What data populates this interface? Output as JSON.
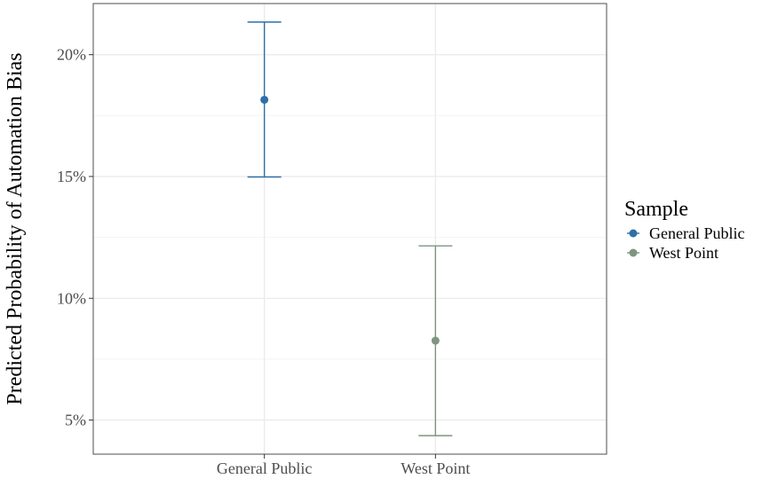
{
  "chart_data": {
    "type": "scatter",
    "title": "",
    "xlabel": "",
    "ylabel": "Predicted Probability of Automation Bias",
    "categories": [
      "General Public",
      "West Point"
    ],
    "ylim": [
      3.6,
      22.1
    ],
    "yticks": [
      5,
      10,
      15,
      20
    ],
    "ytick_labels": [
      "5%",
      "10%",
      "15%",
      "20%"
    ],
    "grid": true,
    "legend": {
      "title": "Sample",
      "position": "right",
      "entries": [
        "General Public",
        "West Point"
      ]
    },
    "series": [
      {
        "name": "General Public",
        "category": "General Public",
        "estimate": 18.15,
        "lower": 14.98,
        "upper": 21.34,
        "color": "#2e6fa8"
      },
      {
        "name": "West Point",
        "category": "West Point",
        "estimate": 8.26,
        "lower": 4.36,
        "upper": 12.15,
        "color": "#7e9580"
      }
    ]
  }
}
